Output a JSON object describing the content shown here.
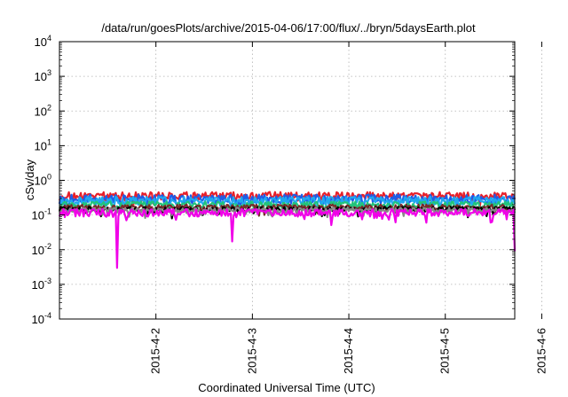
{
  "chart_data": {
    "type": "line",
    "title": "/data/run/goesPlots/archive/2015-04-06/17:00/flux/../bryn/5daysEarth.plot",
    "xlabel": "Coordinated Universal Time (UTC)",
    "ylabel": "cSv/day",
    "yscale": "log",
    "ylim": [
      0.0001,
      10000
    ],
    "yticks": [
      {
        "value": 0.0001,
        "base": "10",
        "exp": "-4"
      },
      {
        "value": 0.001,
        "base": "10",
        "exp": "-3"
      },
      {
        "value": 0.01,
        "base": "10",
        "exp": "-2"
      },
      {
        "value": 0.1,
        "base": "10",
        "exp": "-1"
      },
      {
        "value": 1,
        "base": "10",
        "exp": "0"
      },
      {
        "value": 10,
        "base": "10",
        "exp": "1"
      },
      {
        "value": 100,
        "base": "10",
        "exp": "2"
      },
      {
        "value": 1000,
        "base": "10",
        "exp": "3"
      },
      {
        "value": 10000,
        "base": "10",
        "exp": "4"
      }
    ],
    "xlim": [
      0,
      4.72
    ],
    "xticks": [
      {
        "value": 1,
        "label": "2015-4-2"
      },
      {
        "value": 2,
        "label": "2015-4-3"
      },
      {
        "value": 3,
        "label": "2015-4-4"
      },
      {
        "value": 4,
        "label": "2015-4-5"
      },
      {
        "value": 5,
        "label": "2015-4-6"
      }
    ],
    "grid": true,
    "series": [
      {
        "color": "#e8202a",
        "base": 0.36,
        "noise": 0.28,
        "dips": []
      },
      {
        "color": "#1e5ee8",
        "base": 0.3,
        "noise": 0.3,
        "dips": []
      },
      {
        "color": "#20a8f0",
        "base": 0.26,
        "noise": 0.3,
        "dips": []
      },
      {
        "color": "#22c47a",
        "base": 0.2,
        "noise": 0.22,
        "dips": []
      },
      {
        "color": "#7a2a2a",
        "base": 0.17,
        "noise": 0.18,
        "dips": []
      },
      {
        "color": "#000000",
        "base": 0.15,
        "noise": 0.16,
        "dips": []
      },
      {
        "color": "#888888",
        "base": 0.14,
        "noise": 0.16,
        "dips": []
      },
      {
        "color": "#f000e8",
        "base": 0.12,
        "noise": 0.25,
        "dips": [
          {
            "x": 0.6,
            "v": 0.0008
          },
          {
            "x": 1.79,
            "v": 0.015
          },
          {
            "x": 2.82,
            "v": 0.045
          },
          {
            "x": 3.8,
            "v": 0.045
          },
          {
            "x": 4.72,
            "v": 0.009
          }
        ]
      }
    ]
  }
}
